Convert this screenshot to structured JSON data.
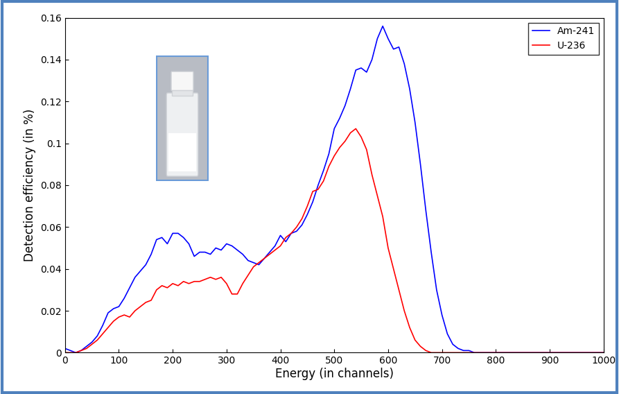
{
  "chart_data": {
    "type": "line",
    "xlabel": "Energy (in channels)",
    "ylabel": "Detection efficiency (in %)",
    "x": [
      0,
      10,
      20,
      30,
      40,
      50,
      60,
      70,
      80,
      90,
      100,
      110,
      120,
      130,
      140,
      150,
      160,
      170,
      180,
      190,
      200,
      210,
      220,
      230,
      240,
      250,
      260,
      270,
      280,
      290,
      300,
      310,
      320,
      330,
      340,
      350,
      360,
      370,
      380,
      390,
      400,
      410,
      420,
      430,
      440,
      450,
      460,
      470,
      480,
      490,
      500,
      510,
      520,
      530,
      540,
      550,
      560,
      570,
      580,
      590,
      600,
      610,
      620,
      630,
      640,
      650,
      660,
      670,
      680,
      690,
      700,
      710,
      720,
      730,
      740,
      750,
      760,
      770,
      780,
      800,
      900,
      1000
    ],
    "series": [
      {
        "name": "Am-241",
        "color": "#0000ff",
        "values": [
          0.002,
          0.001,
          0.0,
          0.001,
          0.003,
          0.005,
          0.008,
          0.013,
          0.019,
          0.021,
          0.022,
          0.026,
          0.031,
          0.036,
          0.039,
          0.042,
          0.047,
          0.054,
          0.055,
          0.052,
          0.057,
          0.057,
          0.055,
          0.052,
          0.046,
          0.048,
          0.048,
          0.047,
          0.05,
          0.049,
          0.052,
          0.051,
          0.049,
          0.047,
          0.044,
          0.043,
          0.042,
          0.045,
          0.048,
          0.051,
          0.056,
          0.053,
          0.057,
          0.058,
          0.061,
          0.066,
          0.072,
          0.08,
          0.087,
          0.095,
          0.107,
          0.112,
          0.118,
          0.126,
          0.135,
          0.136,
          0.134,
          0.14,
          0.15,
          0.156,
          0.15,
          0.145,
          0.146,
          0.138,
          0.126,
          0.11,
          0.09,
          0.068,
          0.048,
          0.03,
          0.018,
          0.009,
          0.004,
          0.002,
          0.001,
          0.001,
          0.0,
          0.0,
          0.0,
          0.0,
          0.0,
          0.0
        ]
      },
      {
        "name": "U-236",
        "color": "#ff0000",
        "values": [
          0.0,
          0.0,
          0.0,
          0.001,
          0.002,
          0.004,
          0.006,
          0.009,
          0.012,
          0.015,
          0.017,
          0.018,
          0.017,
          0.02,
          0.022,
          0.024,
          0.025,
          0.03,
          0.032,
          0.031,
          0.033,
          0.032,
          0.034,
          0.033,
          0.034,
          0.034,
          0.035,
          0.036,
          0.035,
          0.036,
          0.033,
          0.028,
          0.028,
          0.033,
          0.037,
          0.041,
          0.043,
          0.045,
          0.047,
          0.049,
          0.051,
          0.055,
          0.057,
          0.06,
          0.064,
          0.07,
          0.077,
          0.078,
          0.082,
          0.089,
          0.094,
          0.098,
          0.101,
          0.105,
          0.107,
          0.103,
          0.097,
          0.085,
          0.075,
          0.065,
          0.05,
          0.04,
          0.03,
          0.02,
          0.012,
          0.006,
          0.003,
          0.001,
          0.0,
          0.0,
          0.0,
          0.0,
          0.0,
          0.0,
          0.0,
          0.0,
          0.0,
          0.0,
          0.0,
          0.0,
          0.0,
          0.0
        ]
      }
    ],
    "xlim": [
      0,
      1000
    ],
    "xticks": [
      0,
      100,
      200,
      300,
      400,
      500,
      600,
      700,
      800,
      900,
      1000
    ],
    "ylim": [
      0,
      0.16
    ],
    "yticks": [
      0,
      0.02,
      0.04,
      0.06,
      0.08,
      0.1,
      0.12,
      0.14,
      0.16
    ],
    "legend": "upper right",
    "grid": false
  }
}
